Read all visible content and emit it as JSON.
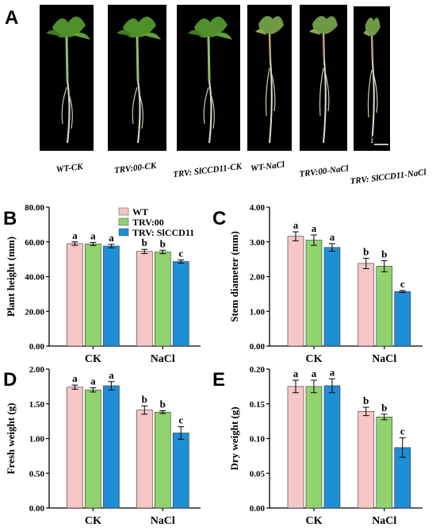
{
  "panel_a": {
    "label": "A",
    "scale_bar": "2 cm",
    "photos": [
      {
        "label": "WT-CK",
        "plant": "tall-leafy"
      },
      {
        "label": "TRV:00-CK",
        "plant": "tall-leafy"
      },
      {
        "label": "TRV: SlCCD11-CK",
        "plant": "tall-leafy"
      },
      {
        "label": "WT-NaCl",
        "plant": "wilted"
      },
      {
        "label": "TRV:00-NaCl",
        "plant": "wilted"
      },
      {
        "label": "TRV: SlCCD11-NaCl",
        "plant": "small-wilted"
      }
    ]
  },
  "legend": [
    {
      "name": "WT",
      "color": "#f7c7c7"
    },
    {
      "name": "TRV:00",
      "color": "#91d36f"
    },
    {
      "name": "TRV: SlCCD11",
      "color": "#1e8fd6"
    }
  ],
  "chart_data": [
    {
      "panel": "B",
      "type": "bar",
      "ylabel": "Plant height (mm)",
      "categories": [
        "CK",
        "NaCl"
      ],
      "ylim": [
        0,
        80
      ],
      "yticks": [
        "0.00",
        "20.00",
        "40.00",
        "60.00",
        "80.00"
      ],
      "series": [
        {
          "name": "WT",
          "values": [
            59.0,
            54.5
          ],
          "errors": [
            1.0,
            1.2
          ],
          "letters": [
            "a",
            "b"
          ]
        },
        {
          "name": "TRV:00",
          "values": [
            58.8,
            54.2
          ],
          "errors": [
            0.9,
            1.0
          ],
          "letters": [
            "a",
            "b"
          ]
        },
        {
          "name": "TRV: SlCCD11",
          "values": [
            57.6,
            48.7
          ],
          "errors": [
            1.0,
            0.9
          ],
          "letters": [
            "a",
            "c"
          ]
        }
      ]
    },
    {
      "panel": "C",
      "type": "bar",
      "ylabel": "Stem diameter (mm)",
      "categories": [
        "CK",
        "NaCl"
      ],
      "ylim": [
        0,
        4
      ],
      "yticks": [
        "0.00",
        "1.00",
        "2.00",
        "3.00",
        "4.00"
      ],
      "series": [
        {
          "name": "WT",
          "values": [
            3.16,
            2.38
          ],
          "errors": [
            0.13,
            0.15
          ],
          "letters": [
            "a",
            "b"
          ]
        },
        {
          "name": "TRV:00",
          "values": [
            3.05,
            2.3
          ],
          "errors": [
            0.15,
            0.16
          ],
          "letters": [
            "a",
            "b"
          ]
        },
        {
          "name": "TRV: SlCCD11",
          "values": [
            2.84,
            1.57
          ],
          "errors": [
            0.11,
            0.03
          ],
          "letters": [
            "a",
            "c"
          ]
        }
      ]
    },
    {
      "panel": "D",
      "type": "bar",
      "ylabel": "Fresh weight (g)",
      "categories": [
        "CK",
        "NaCl"
      ],
      "ylim": [
        0,
        2
      ],
      "yticks": [
        "0.00",
        "0.50",
        "1.00",
        "1.50",
        "2.00"
      ],
      "series": [
        {
          "name": "WT",
          "values": [
            1.74,
            1.41
          ],
          "errors": [
            0.03,
            0.06
          ],
          "letters": [
            "a",
            "b"
          ]
        },
        {
          "name": "TRV:00",
          "values": [
            1.7,
            1.38
          ],
          "errors": [
            0.03,
            0.02
          ],
          "letters": [
            "a",
            "b"
          ]
        },
        {
          "name": "TRV: SlCCD11",
          "values": [
            1.76,
            1.08
          ],
          "errors": [
            0.06,
            0.09
          ],
          "letters": [
            "a",
            "c"
          ]
        }
      ]
    },
    {
      "panel": "E",
      "type": "bar",
      "ylabel": "Dry weight (g)",
      "categories": [
        "CK",
        "NaCl"
      ],
      "ylim": [
        0,
        0.2
      ],
      "yticks": [
        "0.00",
        "0.05",
        "0.10",
        "0.15",
        "0.20"
      ],
      "series": [
        {
          "name": "WT",
          "values": [
            0.175,
            0.139
          ],
          "errors": [
            0.009,
            0.006
          ],
          "letters": [
            "a",
            "b"
          ]
        },
        {
          "name": "TRV:00",
          "values": [
            0.175,
            0.131
          ],
          "errors": [
            0.009,
            0.004
          ],
          "letters": [
            "a",
            "b"
          ]
        },
        {
          "name": "TRV: SlCCD11",
          "values": [
            0.176,
            0.087
          ],
          "errors": [
            0.01,
            0.014
          ],
          "letters": [
            "a",
            "c"
          ]
        }
      ]
    }
  ]
}
